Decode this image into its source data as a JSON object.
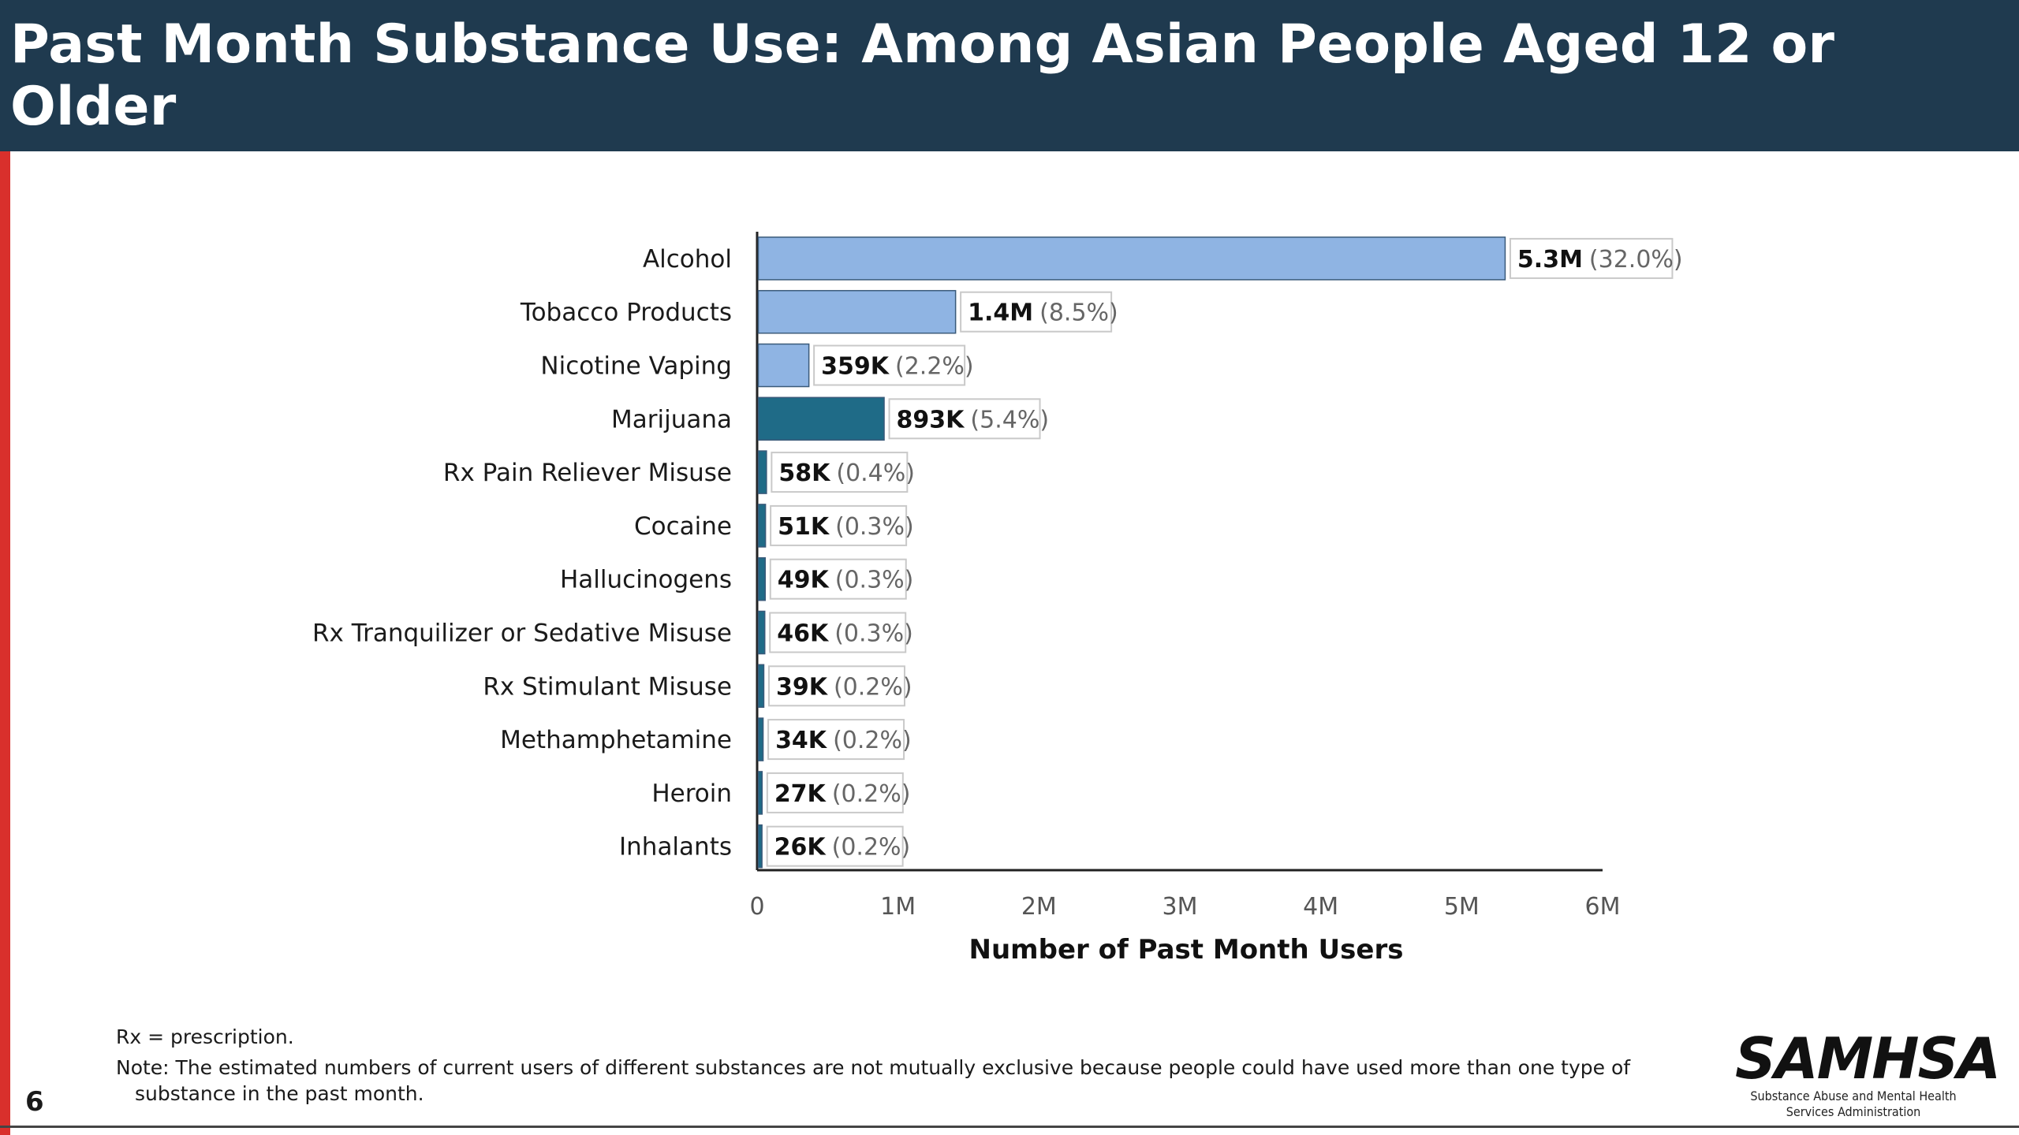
{
  "header": {
    "title": "Past Month Substance Use: Among Asian People Aged 12 or Older"
  },
  "colors": {
    "header_bg": "#1f3a4f",
    "stripe": "#d9302c",
    "light_bar": "#8fb4e3",
    "dark_bar": "#1f6b87"
  },
  "chart_data": {
    "type": "bar",
    "orientation": "horizontal",
    "categories": [
      "Alcohol",
      "Tobacco Products",
      "Nicotine Vaping",
      "Marijuana",
      "Rx Pain Reliever Misuse",
      "Cocaine",
      "Hallucinogens",
      "Rx Tranquilizer or Sedative Misuse",
      "Rx Stimulant Misuse",
      "Methamphetamine",
      "Heroin",
      "Inhalants"
    ],
    "values": [
      5300000,
      1400000,
      359000,
      893000,
      58000,
      51000,
      49000,
      46000,
      39000,
      34000,
      27000,
      26000
    ],
    "value_labels": [
      "5.3M",
      "1.4M",
      "359K",
      "893K",
      "58K",
      "51K",
      "49K",
      "46K",
      "39K",
      "34K",
      "27K",
      "26K"
    ],
    "percent_labels": [
      "(32.0%)",
      "(8.5%)",
      "(2.2%)",
      "(5.4%)",
      "(0.4%)",
      "(0.3%)",
      "(0.3%)",
      "(0.3%)",
      "(0.2%)",
      "(0.2%)",
      "(0.2%)",
      "(0.2%)"
    ],
    "bar_colors": [
      "#8fb4e3",
      "#8fb4e3",
      "#8fb4e3",
      "#1f6b87",
      "#1f6b87",
      "#1f6b87",
      "#1f6b87",
      "#1f6b87",
      "#1f6b87",
      "#1f6b87",
      "#1f6b87",
      "#1f6b87"
    ],
    "xlabel": "Number of Past Month Users",
    "xticks": [
      "0",
      "1M",
      "2M",
      "3M",
      "4M",
      "5M",
      "6M"
    ],
    "xlim": [
      0,
      6000000
    ],
    "grid": false
  },
  "footer": {
    "note1": "Rx = prescription.",
    "note2": "Note: The estimated numbers of current users of different substances are not mutually exclusive because people could have used more than one type of substance in the past month.",
    "page_number": "6"
  },
  "logo": {
    "word": "SAMHSA",
    "sub1": "Substance Abuse and Mental Health",
    "sub2": "Services Administration"
  }
}
